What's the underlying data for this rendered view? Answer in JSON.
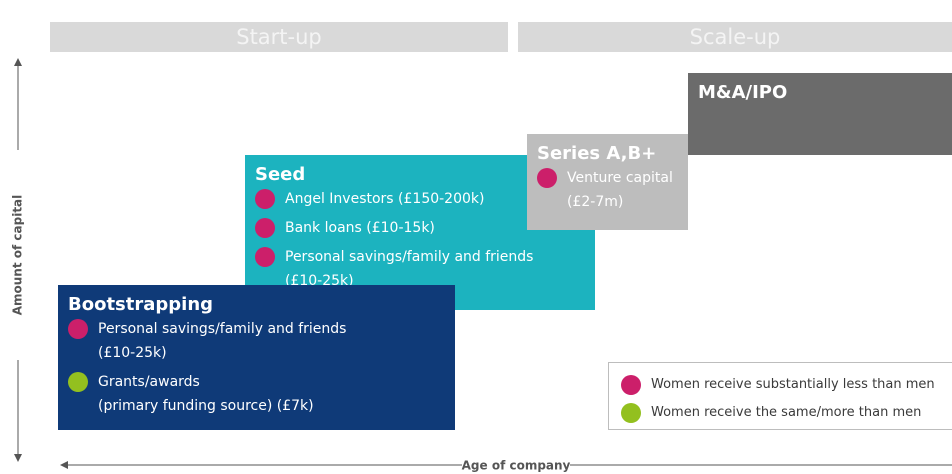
{
  "phases": [
    "Start-up",
    "Scale-up"
  ],
  "axes": {
    "y_label": "Amount of capital",
    "x_label": "Age of company"
  },
  "stages": [
    {
      "title": "Seed",
      "color": "#1cb3bf",
      "items": [
        {
          "color": "#cc1f6a",
          "lines": [
            "Angel Investors (£150-200k)"
          ]
        },
        {
          "color": "#cc1f6a",
          "lines": [
            "Bank loans (£10-15k)"
          ]
        },
        {
          "color": "#cc1f6a",
          "lines": [
            "Personal savings/family and friends",
            "(£10-25k)"
          ]
        }
      ]
    },
    {
      "title": "Bootstrapping",
      "color": "#0f3a78",
      "items": [
        {
          "color": "#cc1f6a",
          "lines": [
            "Personal savings/family and friends",
            "(£10-25k)"
          ]
        },
        {
          "color": "#93c01f",
          "lines": [
            "Grants/awards",
            "(primary funding source) (£7k)"
          ]
        }
      ]
    },
    {
      "title": "Series A,B+",
      "color": "#bdbdbd",
      "items": [
        {
          "color": "#cc1f6a",
          "lines": [
            "Venture capital",
            "(£2-7m)"
          ]
        }
      ]
    },
    {
      "title": "M&A/IPO",
      "color": "#6b6b6b",
      "items": []
    }
  ],
  "legend": [
    {
      "color": "#cc1f6a",
      "text": "Women receive substantially less than men"
    },
    {
      "color": "#93c01f",
      "text": "Women receive the same/more than men"
    }
  ]
}
